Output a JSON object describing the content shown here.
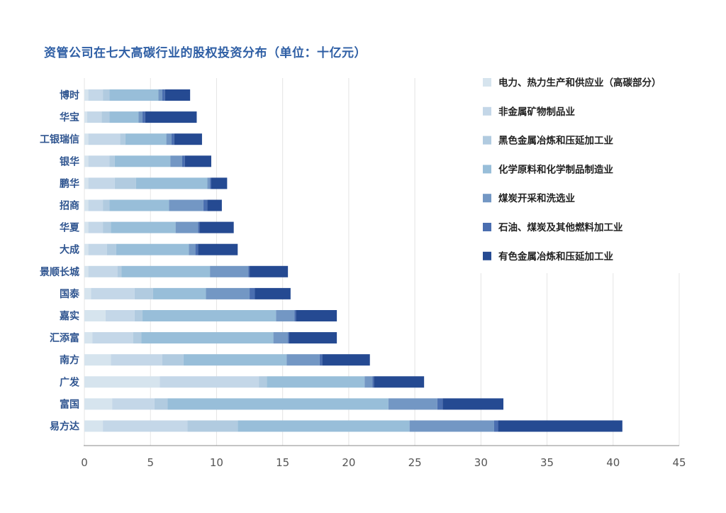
{
  "chart_data": {
    "type": "bar",
    "orientation": "horizontal",
    "stacked": true,
    "title": "资管公司在七大高碳行业的股权投资分布（单位：十亿元）",
    "categories": [
      "博时",
      "华宝",
      "工银瑞信",
      "银华",
      "鹏华",
      "招商",
      "华夏",
      "大成",
      "景顺长城",
      "国泰",
      "嘉实",
      "汇添富",
      "南方",
      "广发",
      "富国",
      "易方达"
    ],
    "series": [
      {
        "name": "电力、热力生产和供应业（高碳部分）",
        "color": "#d6e4ee",
        "values": [
          0.3,
          0.2,
          0.3,
          0.3,
          0.3,
          0.3,
          0.3,
          0.3,
          0.3,
          0.5,
          1.6,
          0.6,
          2.0,
          5.7,
          2.1,
          1.4
        ]
      },
      {
        "name": "非金属矿物制品业",
        "color": "#c4d7e8",
        "values": [
          1.1,
          1.1,
          2.4,
          1.6,
          2.0,
          1.1,
          1.1,
          1.4,
          2.2,
          3.3,
          2.2,
          3.1,
          3.9,
          7.5,
          3.2,
          6.4
        ]
      },
      {
        "name": "黑色金属冶炼和压延加工业",
        "color": "#b1cbe0",
        "values": [
          0.5,
          0.6,
          0.4,
          0.4,
          1.6,
          0.5,
          0.6,
          0.7,
          0.3,
          1.4,
          0.6,
          0.6,
          1.6,
          0.6,
          1.0,
          3.8
        ]
      },
      {
        "name": "化学原料和化学制品制造业",
        "color": "#98bed9",
        "values": [
          3.7,
          2.2,
          3.1,
          4.2,
          5.4,
          4.5,
          4.9,
          5.5,
          6.7,
          4.0,
          10.1,
          10.0,
          7.8,
          7.4,
          16.7,
          13.0
        ]
      },
      {
        "name": "煤炭开采和洗选业",
        "color": "#7397c4",
        "values": [
          0.3,
          0.3,
          0.4,
          0.9,
          0.2,
          2.6,
          1.7,
          0.5,
          2.9,
          3.3,
          1.4,
          1.1,
          2.5,
          0.6,
          3.7,
          6.4
        ]
      },
      {
        "name": "石油、煤炭及其他燃料加工业",
        "color": "#4a6eb0",
        "values": [
          0.2,
          0.2,
          0.2,
          0.2,
          0.1,
          0.3,
          0.1,
          0.2,
          0.1,
          0.4,
          0.1,
          0.1,
          0.2,
          0.1,
          0.4,
          0.3
        ]
      },
      {
        "name": "有色金属冶炼和压延加工业",
        "color": "#254a92",
        "values": [
          1.9,
          3.9,
          2.1,
          2.0,
          1.2,
          1.1,
          2.6,
          3.0,
          2.9,
          2.7,
          3.1,
          3.6,
          3.6,
          3.8,
          4.6,
          9.4
        ]
      }
    ],
    "xlim": [
      0,
      45
    ],
    "xticks": [
      0,
      5,
      10,
      15,
      20,
      25,
      30,
      35,
      40,
      45
    ],
    "grid": "vertical",
    "legend_position": "top-right"
  }
}
